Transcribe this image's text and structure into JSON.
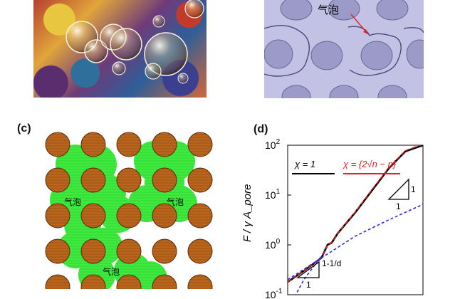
{
  "panels": {
    "b": {
      "annotation": "气泡"
    },
    "c": {
      "label": "(c)",
      "bubble_labels": [
        "气泡",
        "气泡",
        "气泡"
      ]
    },
    "d": {
      "label": "(d)"
    }
  },
  "chart_data": {
    "type": "line",
    "xscale": "log",
    "yscale": "log",
    "ylabel": "F / γ A_pore",
    "yticks": [
      "10^2",
      "10^1",
      "10^0",
      "10^-1"
    ],
    "legend": [
      {
        "label": "χ = 1",
        "color": "#000000"
      },
      {
        "label": "χ = {2√n − n}",
        "color": "#e02020"
      }
    ],
    "slope_labels": [
      {
        "value": "1"
      },
      {
        "value": "1"
      },
      {
        "value": "1-1/d"
      },
      {
        "value": "1"
      }
    ],
    "series": [
      {
        "name": "χ = 1",
        "color": "#000000",
        "style": "solid",
        "x": [
          0.1,
          0.3,
          1,
          1.5,
          2,
          3,
          10,
          30,
          100,
          300,
          1000
        ],
        "y": [
          0.18,
          0.3,
          0.55,
          1.0,
          1.1,
          1.7,
          4.5,
          12,
          35,
          75,
          100
        ]
      },
      {
        "name": "χ = {2√n − n}",
        "color": "#e02020",
        "style": "dashed",
        "x": [
          0.1,
          0.3,
          1,
          1.5,
          2,
          3,
          10,
          30,
          100,
          300,
          1000
        ],
        "y": [
          0.18,
          0.3,
          0.55,
          1.0,
          1.1,
          1.7,
          4.6,
          12.5,
          36,
          78,
          105
        ]
      },
      {
        "name": "",
        "color": "#2a2ad8",
        "style": "dashed",
        "x": [
          0.1,
          1,
          10,
          100,
          1000
        ],
        "y": [
          0.2,
          0.55,
          1.5,
          3.2,
          6.5
        ]
      },
      {
        "name": "",
        "color": "#2a2ad8",
        "style": "dashed",
        "x": [
          0.1,
          0.3,
          1
        ],
        "y": [
          0.05,
          0.2,
          0.6
        ]
      }
    ]
  }
}
